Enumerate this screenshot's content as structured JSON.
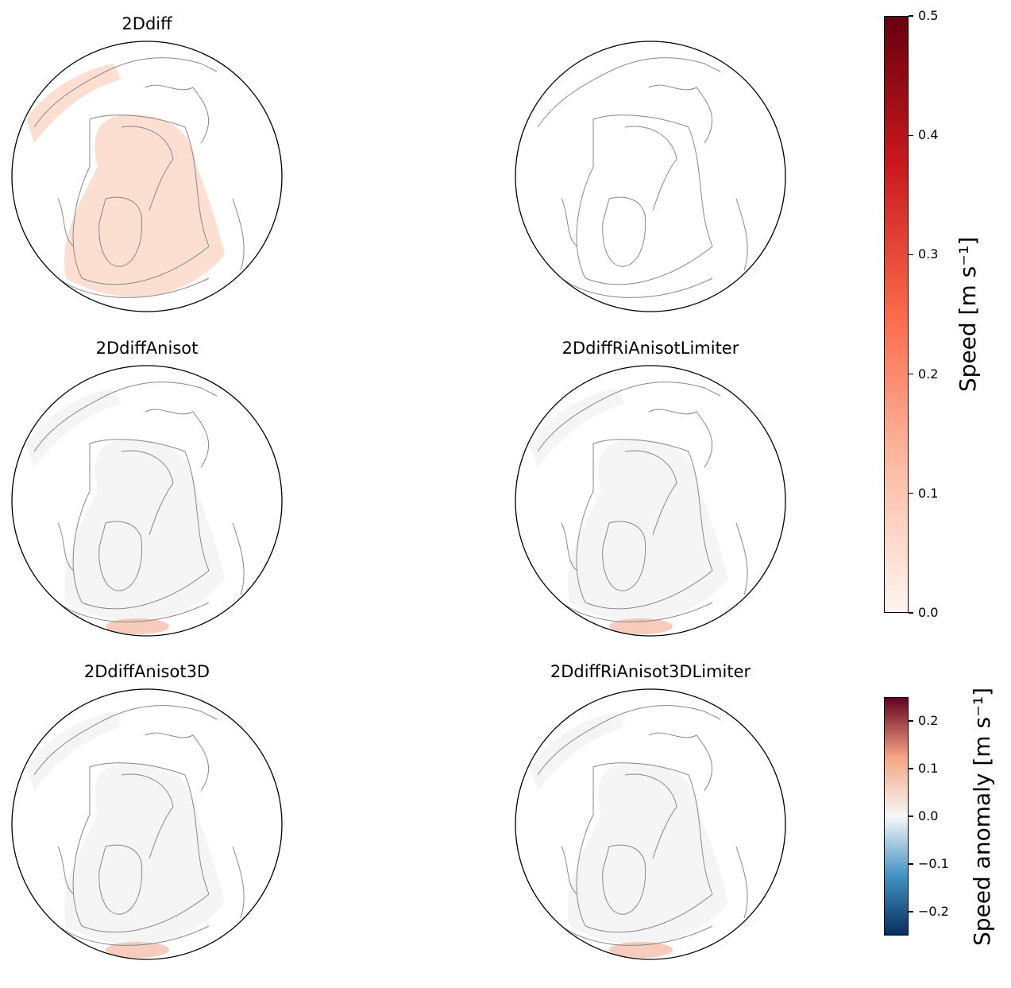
{
  "panels": [
    {
      "title": "2Ddiff",
      "fill": "#fcd9c9",
      "fill_opacity": 0.85,
      "has_title": true
    },
    {
      "title": "",
      "fill": "#ffffff",
      "fill_opacity": 0,
      "has_title": false
    },
    {
      "title": "2DdiffAnisot",
      "fill": "#eeeeee",
      "fill_opacity": 0.6,
      "has_title": true
    },
    {
      "title": "2DdiffRiAnisotLimiter",
      "fill": "#eeeeee",
      "fill_opacity": 0.6,
      "has_title": true
    },
    {
      "title": "2DdiffAnisot3D",
      "fill": "#eeeeee",
      "fill_opacity": 0.6,
      "has_title": true
    },
    {
      "title": "2DdiffRiAnisot3DLimiter",
      "fill": "#eeeeee",
      "fill_opacity": 0.6,
      "has_title": true
    }
  ],
  "colorbars": [
    {
      "label": "Speed [m s⁻¹]",
      "colormap": "Reds",
      "range": [
        0.0,
        0.5
      ],
      "ticks": [
        "0.0",
        "0.1",
        "0.2",
        "0.3",
        "0.4",
        "0.5"
      ],
      "tick_values": [
        0,
        0.1,
        0.2,
        0.3,
        0.4,
        0.5
      ],
      "colors": [
        "#fff5f0",
        "#fcbba1",
        "#fb6a4a",
        "#cb181d",
        "#67000d"
      ]
    },
    {
      "label": "Speed anomaly [m s⁻¹]",
      "colormap": "RdBu_r",
      "range": [
        -0.25,
        0.25
      ],
      "ticks": [
        "−0.2",
        "−0.1",
        "0.0",
        "0.1",
        "0.2"
      ],
      "tick_values": [
        -0.2,
        -0.1,
        0,
        0.1,
        0.2
      ],
      "colors": [
        "#053061",
        "#4393c3",
        "#f7f7f7",
        "#f4a582",
        "#67001f"
      ]
    }
  ]
}
